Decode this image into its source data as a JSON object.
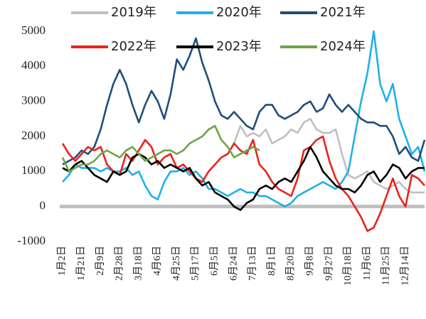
{
  "chart_data": {
    "type": "line",
    "categories": [
      "1月2日",
      null,
      null,
      "1月21日",
      null,
      null,
      "2月9日",
      null,
      null,
      "2月28日",
      null,
      null,
      "3月18日",
      null,
      null,
      "4月6日",
      null,
      null,
      "4月25日",
      null,
      null,
      "5月17日",
      null,
      null,
      "6月5日",
      null,
      null,
      "6月24日",
      null,
      null,
      "7月13日",
      null,
      null,
      "8月1日",
      null,
      null,
      "8月20日",
      null,
      null,
      "9月8日",
      null,
      null,
      "9月27日",
      null,
      null,
      "10月18日",
      null,
      null,
      "11月6日",
      null,
      null,
      "11月25日",
      null,
      null,
      "12月14日",
      null,
      null,
      null
    ],
    "ylim": [
      -1000,
      5000
    ],
    "yticks": [
      -1000,
      0,
      1000,
      2000,
      3000,
      4000,
      5000
    ],
    "series": [
      {
        "name": "2019年",
        "color": "#bfbfbf",
        "values": [
          null,
          null,
          null,
          null,
          null,
          null,
          null,
          null,
          null,
          null,
          null,
          null,
          null,
          null,
          null,
          null,
          null,
          null,
          null,
          null,
          null,
          null,
          null,
          null,
          null,
          null,
          null,
          1800,
          2300,
          2000,
          2100,
          2000,
          2200,
          1800,
          1900,
          2000,
          2200,
          2100,
          2400,
          2500,
          2200,
          2100,
          2100,
          2200,
          1500,
          900,
          800,
          900,
          1000,
          700,
          600,
          500,
          600,
          700,
          500,
          400,
          400,
          400
        ]
      },
      {
        "name": "2020年",
        "color": "#1fb0e8",
        "values": [
          700,
          900,
          1200,
          1100,
          1100,
          1100,
          1000,
          1100,
          1000,
          1000,
          1100,
          900,
          1000,
          600,
          300,
          200,
          700,
          1000,
          1000,
          1100,
          900,
          1000,
          800,
          500,
          500,
          400,
          300,
          400,
          500,
          400,
          400,
          300,
          300,
          200,
          100,
          0,
          100,
          300,
          400,
          500,
          600,
          700,
          600,
          500,
          700,
          1000,
          2000,
          3000,
          3800,
          5000,
          3500,
          3000,
          3500,
          2500,
          2000,
          1500,
          1700,
          1000
        ]
      },
      {
        "name": "2021年",
        "color": "#1f4e79",
        "values": [
          1200,
          1300,
          1400,
          1600,
          1500,
          1700,
          2200,
          2900,
          3500,
          3900,
          3500,
          2900,
          2400,
          2900,
          3300,
          3000,
          2500,
          3200,
          4200,
          3900,
          4300,
          4800,
          4100,
          3600,
          3000,
          2600,
          2500,
          2700,
          2500,
          2300,
          2200,
          2700,
          2900,
          2900,
          2600,
          2500,
          2600,
          2700,
          2900,
          3000,
          2700,
          2800,
          3200,
          2900,
          2700,
          2900,
          2700,
          2500,
          2400,
          2400,
          2300,
          2300,
          2000,
          1500,
          1700,
          1400,
          1300,
          1900
        ]
      },
      {
        "name": "2022年",
        "color": "#e8231e",
        "values": [
          1800,
          1500,
          1300,
          1500,
          1700,
          1600,
          1700,
          1200,
          1000,
          900,
          1500,
          1300,
          1600,
          1900,
          1700,
          1200,
          1400,
          1500,
          1100,
          1200,
          1000,
          800,
          700,
          1000,
          1200,
          1400,
          1500,
          1800,
          1600,
          1500,
          1900,
          1200,
          1000,
          700,
          500,
          400,
          300,
          800,
          1600,
          1700,
          1900,
          2000,
          1300,
          800,
          500,
          300,
          0,
          -300,
          -700,
          -600,
          -200,
          300,
          800,
          300,
          0,
          900,
          800,
          600
        ]
      },
      {
        "name": "2023年",
        "color": "#000000",
        "values": [
          1100,
          1000,
          1200,
          1300,
          1100,
          900,
          800,
          700,
          1000,
          900,
          1000,
          1400,
          1500,
          1400,
          1200,
          1300,
          1100,
          1200,
          1100,
          1000,
          1100,
          800,
          600,
          700,
          400,
          300,
          200,
          0,
          -100,
          100,
          200,
          500,
          600,
          500,
          700,
          800,
          700,
          1000,
          1300,
          1700,
          1400,
          1000,
          800,
          600,
          500,
          500,
          400,
          600,
          900,
          1000,
          700,
          900,
          1200,
          1100,
          800,
          1000,
          1100,
          1100
        ]
      },
      {
        "name": "2024年",
        "color": "#70a443",
        "values": [
          1400,
          1000,
          1100,
          1200,
          1200,
          1300,
          1500,
          1600,
          1500,
          1400,
          1600,
          1700,
          1500,
          1300,
          1400,
          1500,
          1600,
          1600,
          1500,
          1600,
          1800,
          1900,
          2000,
          2200,
          2300,
          1900,
          1700,
          1400,
          1500,
          1600,
          1700,
          1600,
          null,
          null,
          null,
          null,
          null,
          null,
          null,
          null,
          null,
          null,
          null,
          null,
          null,
          null,
          null,
          null,
          null,
          null,
          null,
          null,
          null,
          null,
          null,
          null,
          null,
          null
        ]
      }
    ]
  }
}
